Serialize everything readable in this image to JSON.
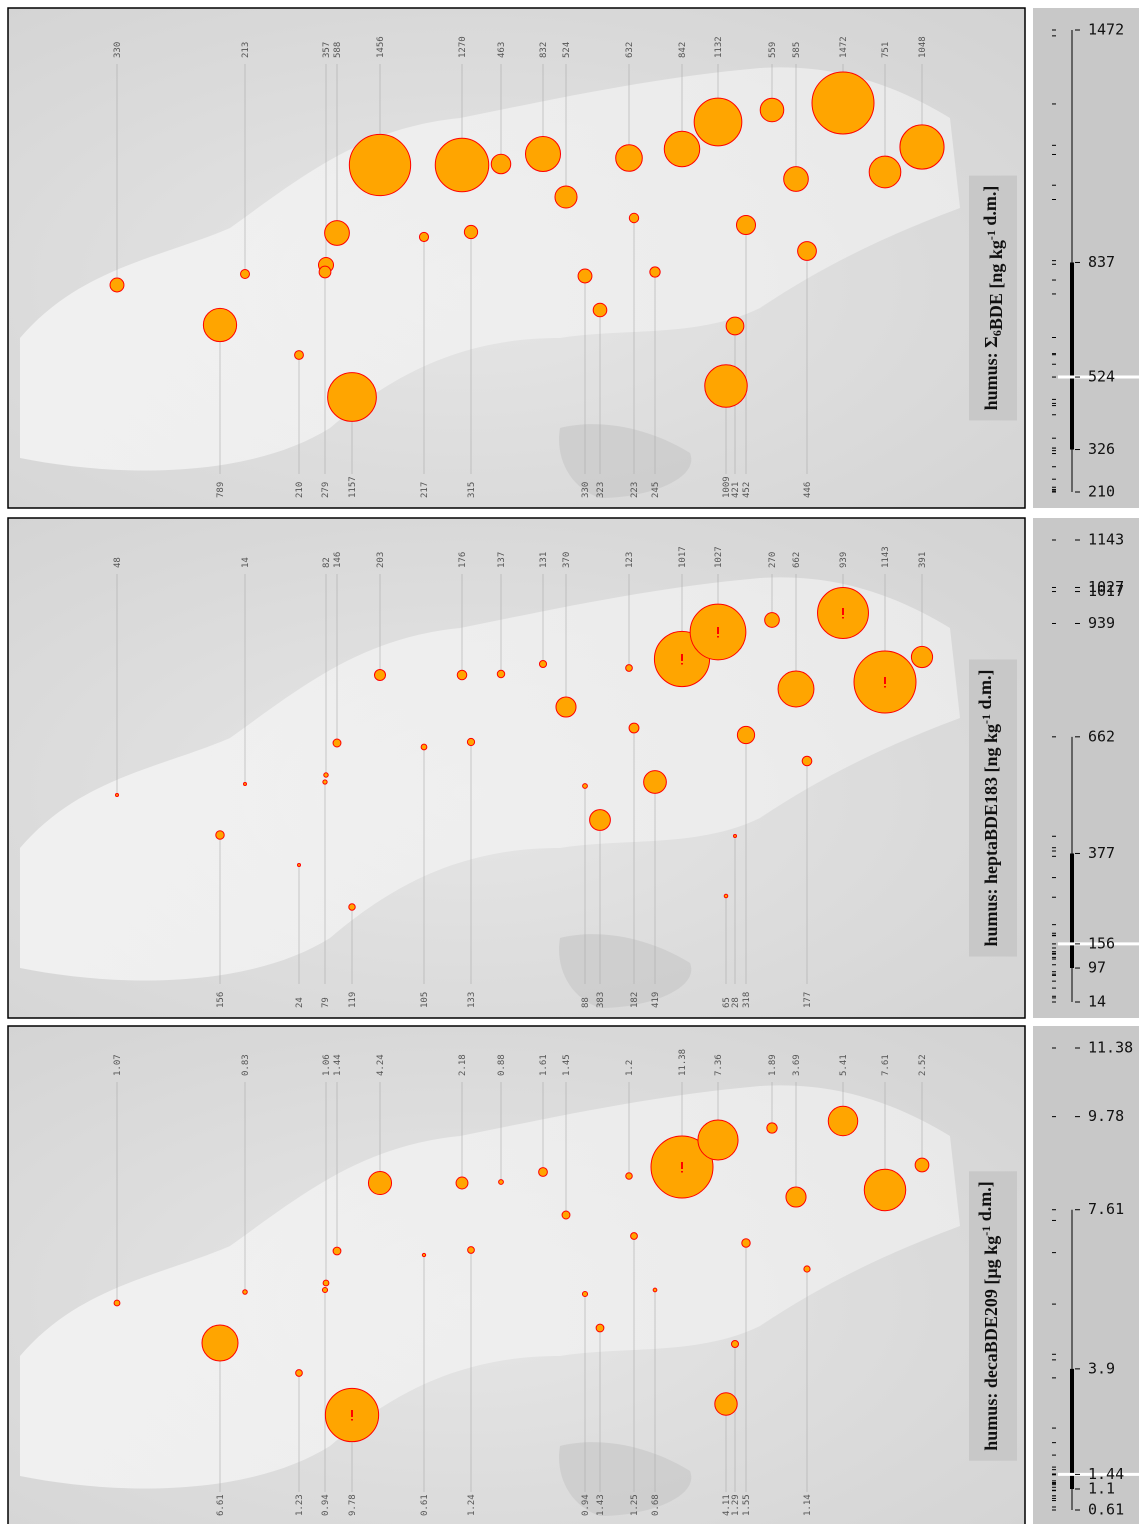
{
  "chart_data": [
    {
      "type": "bubble-map",
      "title": [
        "humus: Σ",
        {
          "sub": "6"
        },
        "BDE [ng kg",
        {
          "sup": "-1"
        },
        " d.m.]"
      ],
      "values": [
        330,
        213,
        357,
        588,
        1456,
        1270,
        463,
        832,
        524,
        632,
        842,
        1132,
        559,
        585,
        1472,
        751,
        1048,
        789,
        210,
        279,
        1157,
        217,
        315,
        330,
        323,
        223,
        245,
        1009,
        421,
        452,
        446
      ],
      "color": "#ffa500",
      "stroke": "#ff0000",
      "ylim": [
        210,
        1472
      ],
      "yticks": [
        210,
        326,
        524,
        837,
        1472
      ],
      "box": {
        "q1": 326,
        "median": 524,
        "q3": 837,
        "whisker_high": 1472
      }
    },
    {
      "type": "bubble-map",
      "title": [
        "humus: heptaBDE183 [ng kg",
        {
          "sup": "-1"
        },
        " d.m.]"
      ],
      "values": [
        48,
        14,
        82,
        146,
        203,
        176,
        137,
        131,
        370,
        123,
        1017,
        1027,
        270,
        662,
        939,
        1143,
        391,
        156,
        24,
        79,
        119,
        105,
        133,
        88,
        383,
        182,
        419,
        65,
        28,
        318,
        177
      ],
      "color": "#ffa500",
      "stroke": "#ff0000",
      "ylim": [
        14,
        1143
      ],
      "yticks": [
        14,
        97,
        156,
        377,
        662,
        939,
        1017,
        1027,
        1143
      ],
      "box": {
        "q1": 97,
        "median": 156,
        "q3": 377,
        "whisker_high": 662
      }
    },
    {
      "type": "bubble-map",
      "title": [
        "humus: decaBDE209 [µg kg",
        {
          "sup": "-1"
        },
        " d.m.]"
      ],
      "values": [
        1.07,
        0.83,
        1.06,
        1.44,
        4.24,
        2.18,
        0.88,
        1.61,
        1.45,
        1.2,
        11.38,
        7.36,
        1.89,
        3.69,
        5.41,
        7.61,
        2.52,
        6.61,
        1.23,
        0.94,
        9.78,
        0.61,
        1.24,
        0.94,
        1.43,
        1.25,
        0.68,
        4.11,
        1.29,
        1.55,
        1.14
      ],
      "color": "#ffa500",
      "stroke": "#ff0000",
      "ylim": [
        0.61,
        11.38
      ],
      "yticks": [
        0.61,
        1.1,
        1.44,
        3.9,
        7.61,
        9.78,
        11.38
      ],
      "box": {
        "q1": 1.1,
        "median": 1.44,
        "q3": 3.9,
        "whisker_high": 7.61
      }
    }
  ]
}
